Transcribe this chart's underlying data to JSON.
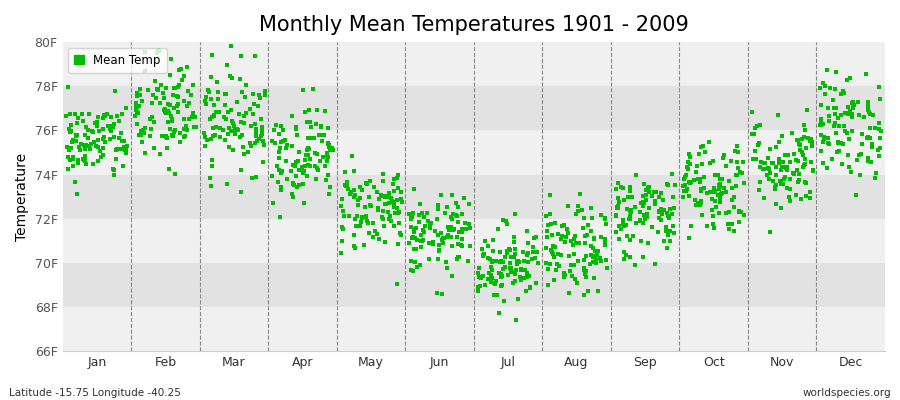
{
  "title": "Monthly Mean Temperatures 1901 - 2009",
  "ylabel": "Temperature",
  "ylim": [
    66,
    80
  ],
  "yticks": [
    66,
    68,
    70,
    72,
    74,
    76,
    78,
    80
  ],
  "ytick_labels": [
    "66F",
    "68F",
    "70F",
    "72F",
    "74F",
    "76F",
    "78F",
    "80F"
  ],
  "month_labels": [
    "Jan",
    "Feb",
    "Mar",
    "Apr",
    "May",
    "Jun",
    "Jul",
    "Aug",
    "Sep",
    "Oct",
    "Nov",
    "Dec"
  ],
  "legend_label": "Mean Temp",
  "bottom_left": "Latitude -15.75 Longitude -40.25",
  "bottom_right": "worldspecies.org",
  "dot_color": "#00bb00",
  "bg_color": "#ffffff",
  "band_light": "#f0f0f0",
  "band_dark": "#e2e2e2",
  "monthly_mean_F": [
    75.5,
    76.8,
    76.5,
    75.0,
    72.5,
    71.2,
    70.0,
    70.5,
    72.2,
    73.5,
    74.5,
    76.2
  ],
  "monthly_std_F": [
    0.9,
    1.3,
    1.2,
    1.1,
    1.0,
    0.9,
    0.9,
    1.0,
    1.0,
    1.1,
    1.1,
    1.2
  ],
  "n_years": 109,
  "seed": 42,
  "title_fontsize": 15,
  "axis_fontsize": 9,
  "label_fontsize": 10
}
